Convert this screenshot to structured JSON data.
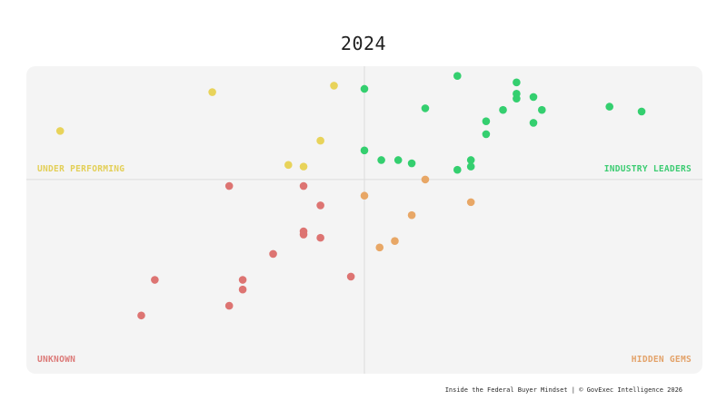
{
  "header": {
    "title": "2024"
  },
  "quadrants": {
    "top_left": "UNDER PERFORMING",
    "top_right": "INDUSTRY LEADERS",
    "bottom_left": "UNKNOWN",
    "bottom_right": "HIDDEN GEMS"
  },
  "footer": {
    "text": "Inside the Federal Buyer Mindset | © GovExec Intelligence 2026"
  },
  "colors": {
    "plot_background": "#f4f4f4",
    "divider": "#dcdcdc",
    "under_performing": "#e8d35a",
    "industry_leaders": "#34cf6f",
    "unknown": "#dd7472",
    "hidden_gems": "#e8a766"
  },
  "chart_data": {
    "type": "scatter",
    "title": "2024",
    "xlabel": "",
    "ylabel": "",
    "xlim": [
      -10,
      10
    ],
    "ylim": [
      -6,
      3.5
    ],
    "axes_visible": false,
    "grid": false,
    "dividers": {
      "x": 0,
      "y": 0
    },
    "series": [
      {
        "name": "UNDER PERFORMING",
        "color_key": "under_performing",
        "points": [
          [
            -9.0,
            1.5
          ],
          [
            -4.5,
            2.7
          ],
          [
            -0.9,
            2.9
          ],
          [
            -1.3,
            1.2
          ],
          [
            -2.25,
            0.45
          ],
          [
            -1.8,
            0.4
          ]
        ]
      },
      {
        "name": "INDUSTRY LEADERS",
        "color_key": "industry_leaders",
        "points": [
          [
            0.0,
            2.8
          ],
          [
            1.8,
            2.2
          ],
          [
            4.5,
            2.5
          ],
          [
            5.0,
            2.55
          ],
          [
            5.25,
            2.15
          ],
          [
            3.6,
            1.8
          ],
          [
            3.6,
            1.4
          ],
          [
            4.1,
            2.15
          ],
          [
            5.0,
            1.75
          ],
          [
            7.25,
            2.25
          ],
          [
            8.2,
            2.1
          ],
          [
            0.0,
            0.9
          ],
          [
            0.5,
            0.6
          ],
          [
            1.0,
            0.6
          ],
          [
            1.4,
            0.5
          ],
          [
            2.75,
            3.2
          ],
          [
            3.15,
            0.6
          ],
          [
            3.15,
            0.4
          ],
          [
            2.75,
            0.3
          ],
          [
            4.5,
            3.0
          ],
          [
            4.5,
            2.65
          ]
        ]
      },
      {
        "name": "HIDDEN GEMS",
        "color_key": "hidden_gems",
        "points": [
          [
            1.8,
            0.0
          ],
          [
            0.0,
            -0.5
          ],
          [
            3.15,
            -0.7
          ],
          [
            1.4,
            -1.1
          ],
          [
            0.9,
            -1.9
          ],
          [
            0.45,
            -2.1
          ]
        ]
      },
      {
        "name": "UNKNOWN",
        "color_key": "unknown",
        "points": [
          [
            -4.0,
            -0.2
          ],
          [
            -1.8,
            -0.2
          ],
          [
            -1.3,
            -0.8
          ],
          [
            -1.8,
            -1.6
          ],
          [
            -1.8,
            -1.7
          ],
          [
            -1.3,
            -1.8
          ],
          [
            -2.7,
            -2.3
          ],
          [
            -0.4,
            -3.0
          ],
          [
            -3.6,
            -3.1
          ],
          [
            -3.6,
            -3.4
          ],
          [
            -6.2,
            -3.1
          ],
          [
            -4.0,
            -3.9
          ],
          [
            -6.6,
            -4.2
          ]
        ]
      }
    ]
  }
}
